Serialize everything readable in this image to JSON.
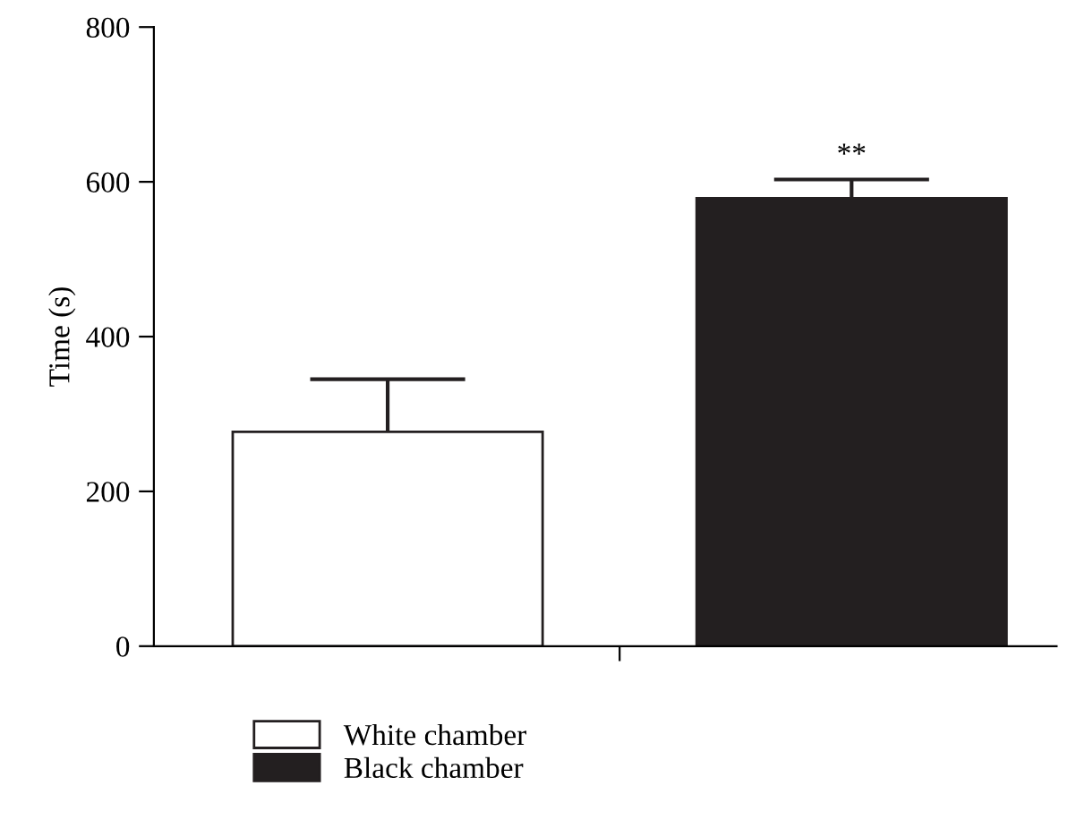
{
  "chart_data": {
    "type": "bar",
    "ylabel": "Time (s)",
    "categories": [
      null,
      null
    ],
    "series": [
      {
        "name": "White chamber",
        "color": "#ffffff",
        "values": [
          277,
          null
        ],
        "errors": [
          [
            277,
            345
          ],
          null
        ]
      },
      {
        "name": "Black chamber",
        "color": "#231f20",
        "values": [
          null,
          579
        ],
        "errors": [
          null,
          [
            579,
            603
          ]
        ]
      }
    ],
    "ylim": [
      0,
      800
    ],
    "yticks": [
      0,
      200,
      400,
      600,
      800
    ],
    "annotations": [
      "**"
    ],
    "grid": false,
    "legend": "bottom"
  }
}
